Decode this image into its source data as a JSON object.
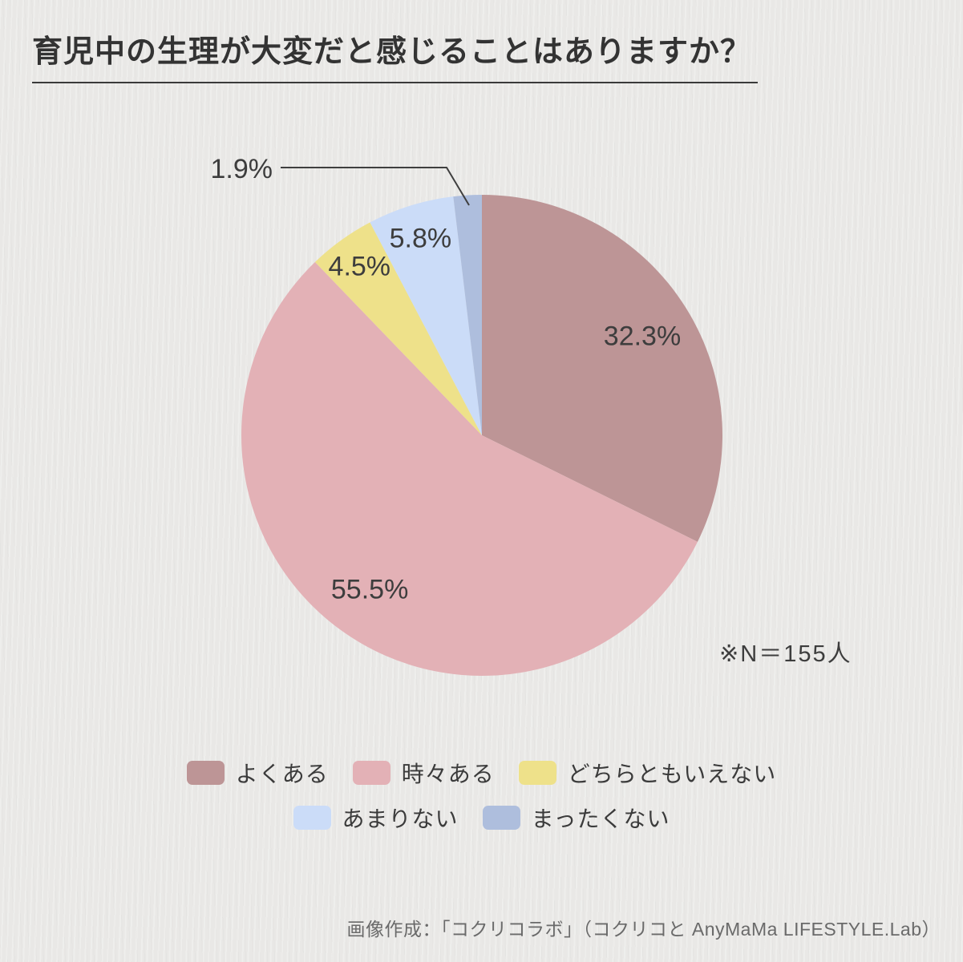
{
  "page": {
    "title": "育児中の生理が大変だと感じることはありますか？",
    "note": "※N＝155人",
    "credit": "画像作成：「コクリコラボ」（コクリコと AnyMaMa LIFESTYLE.Lab）"
  },
  "chart_data": {
    "type": "pie",
    "title": "育児中の生理が大変だと感じることはありますか？",
    "sample_size_note": "※N＝155人",
    "sample_size": 155,
    "unit": "%",
    "start_angle_deg": 0,
    "direction": "clockwise",
    "categories": [
      "よくある",
      "時々ある",
      "どちらともいえない",
      "あまりない",
      "まったくない"
    ],
    "values": [
      32.3,
      55.5,
      4.5,
      5.8,
      1.9
    ],
    "labels": [
      "32.3%",
      "55.5%",
      "4.5%",
      "5.8%",
      "1.9%"
    ],
    "colors": [
      "#bd9596",
      "#e3b1b6",
      "#eee18a",
      "#cbdcf8",
      "#aebedd"
    ],
    "legend_position": "bottom",
    "outside_label_index": 4,
    "background_color": "#e9e8e6",
    "text_color": "#3d3d3d"
  }
}
